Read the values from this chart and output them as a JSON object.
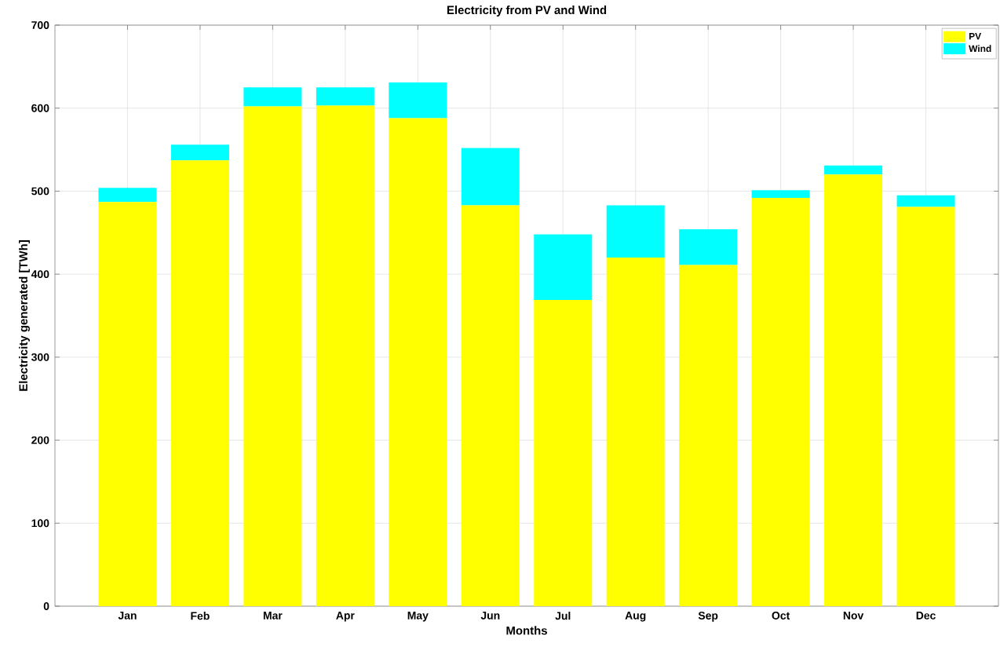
{
  "chart_data": {
    "type": "bar",
    "title": "Electricity from PV and Wind",
    "xlabel": "Months",
    "ylabel": "Electricity generated [TWh]",
    "categories": [
      "Jan",
      "Feb",
      "Mar",
      "Apr",
      "May",
      "Jun",
      "Jul",
      "Aug",
      "Sep",
      "Oct",
      "Nov",
      "Dec"
    ],
    "series": [
      {
        "name": "PV",
        "color": "#ffff00",
        "values": [
          487,
          537,
          602,
          603,
          588,
          483,
          369,
          420,
          411,
          492,
          520,
          481
        ]
      },
      {
        "name": "Wind",
        "color": "#00ffff",
        "values": [
          17,
          19,
          23,
          22,
          43,
          69,
          79,
          63,
          43,
          9,
          11,
          14
        ]
      }
    ],
    "stacked": true,
    "ylim": [
      0,
      700
    ],
    "yticks": [
      0,
      100,
      200,
      300,
      400,
      500,
      600,
      700
    ],
    "grid": true,
    "legend": "top right"
  }
}
